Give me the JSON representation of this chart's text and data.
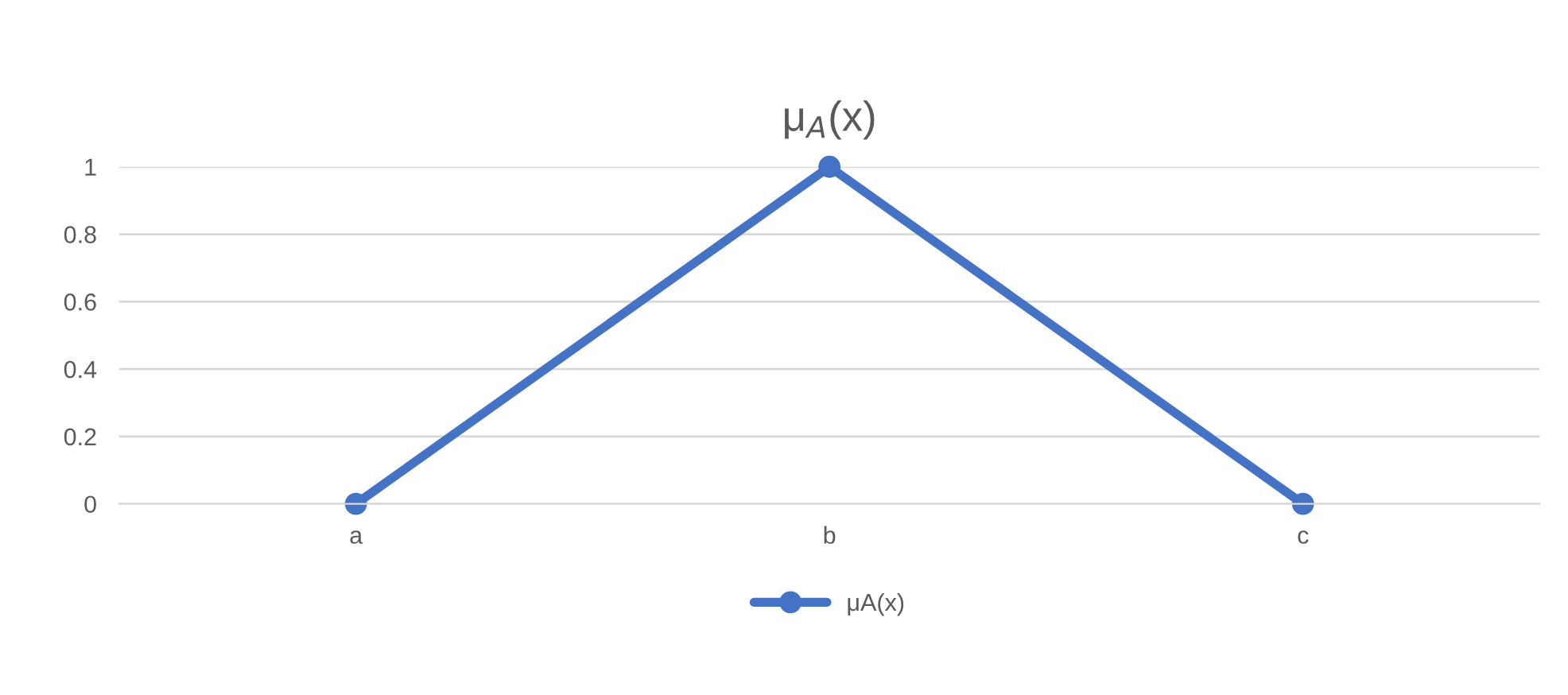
{
  "chart_data": {
    "type": "line",
    "title": "μ$_{A}$(x)",
    "categories": [
      "a",
      "b",
      "c"
    ],
    "series": [
      {
        "name": "μA(x)",
        "color": "#4472c4",
        "values": [
          0,
          1,
          0
        ]
      }
    ],
    "ylim": [
      0,
      1
    ],
    "yticks": [
      0,
      0.2,
      0.4,
      0.6,
      0.8,
      1
    ],
    "grid": "y",
    "legend": "bottom",
    "marker": "circle",
    "line_style": "solid"
  }
}
